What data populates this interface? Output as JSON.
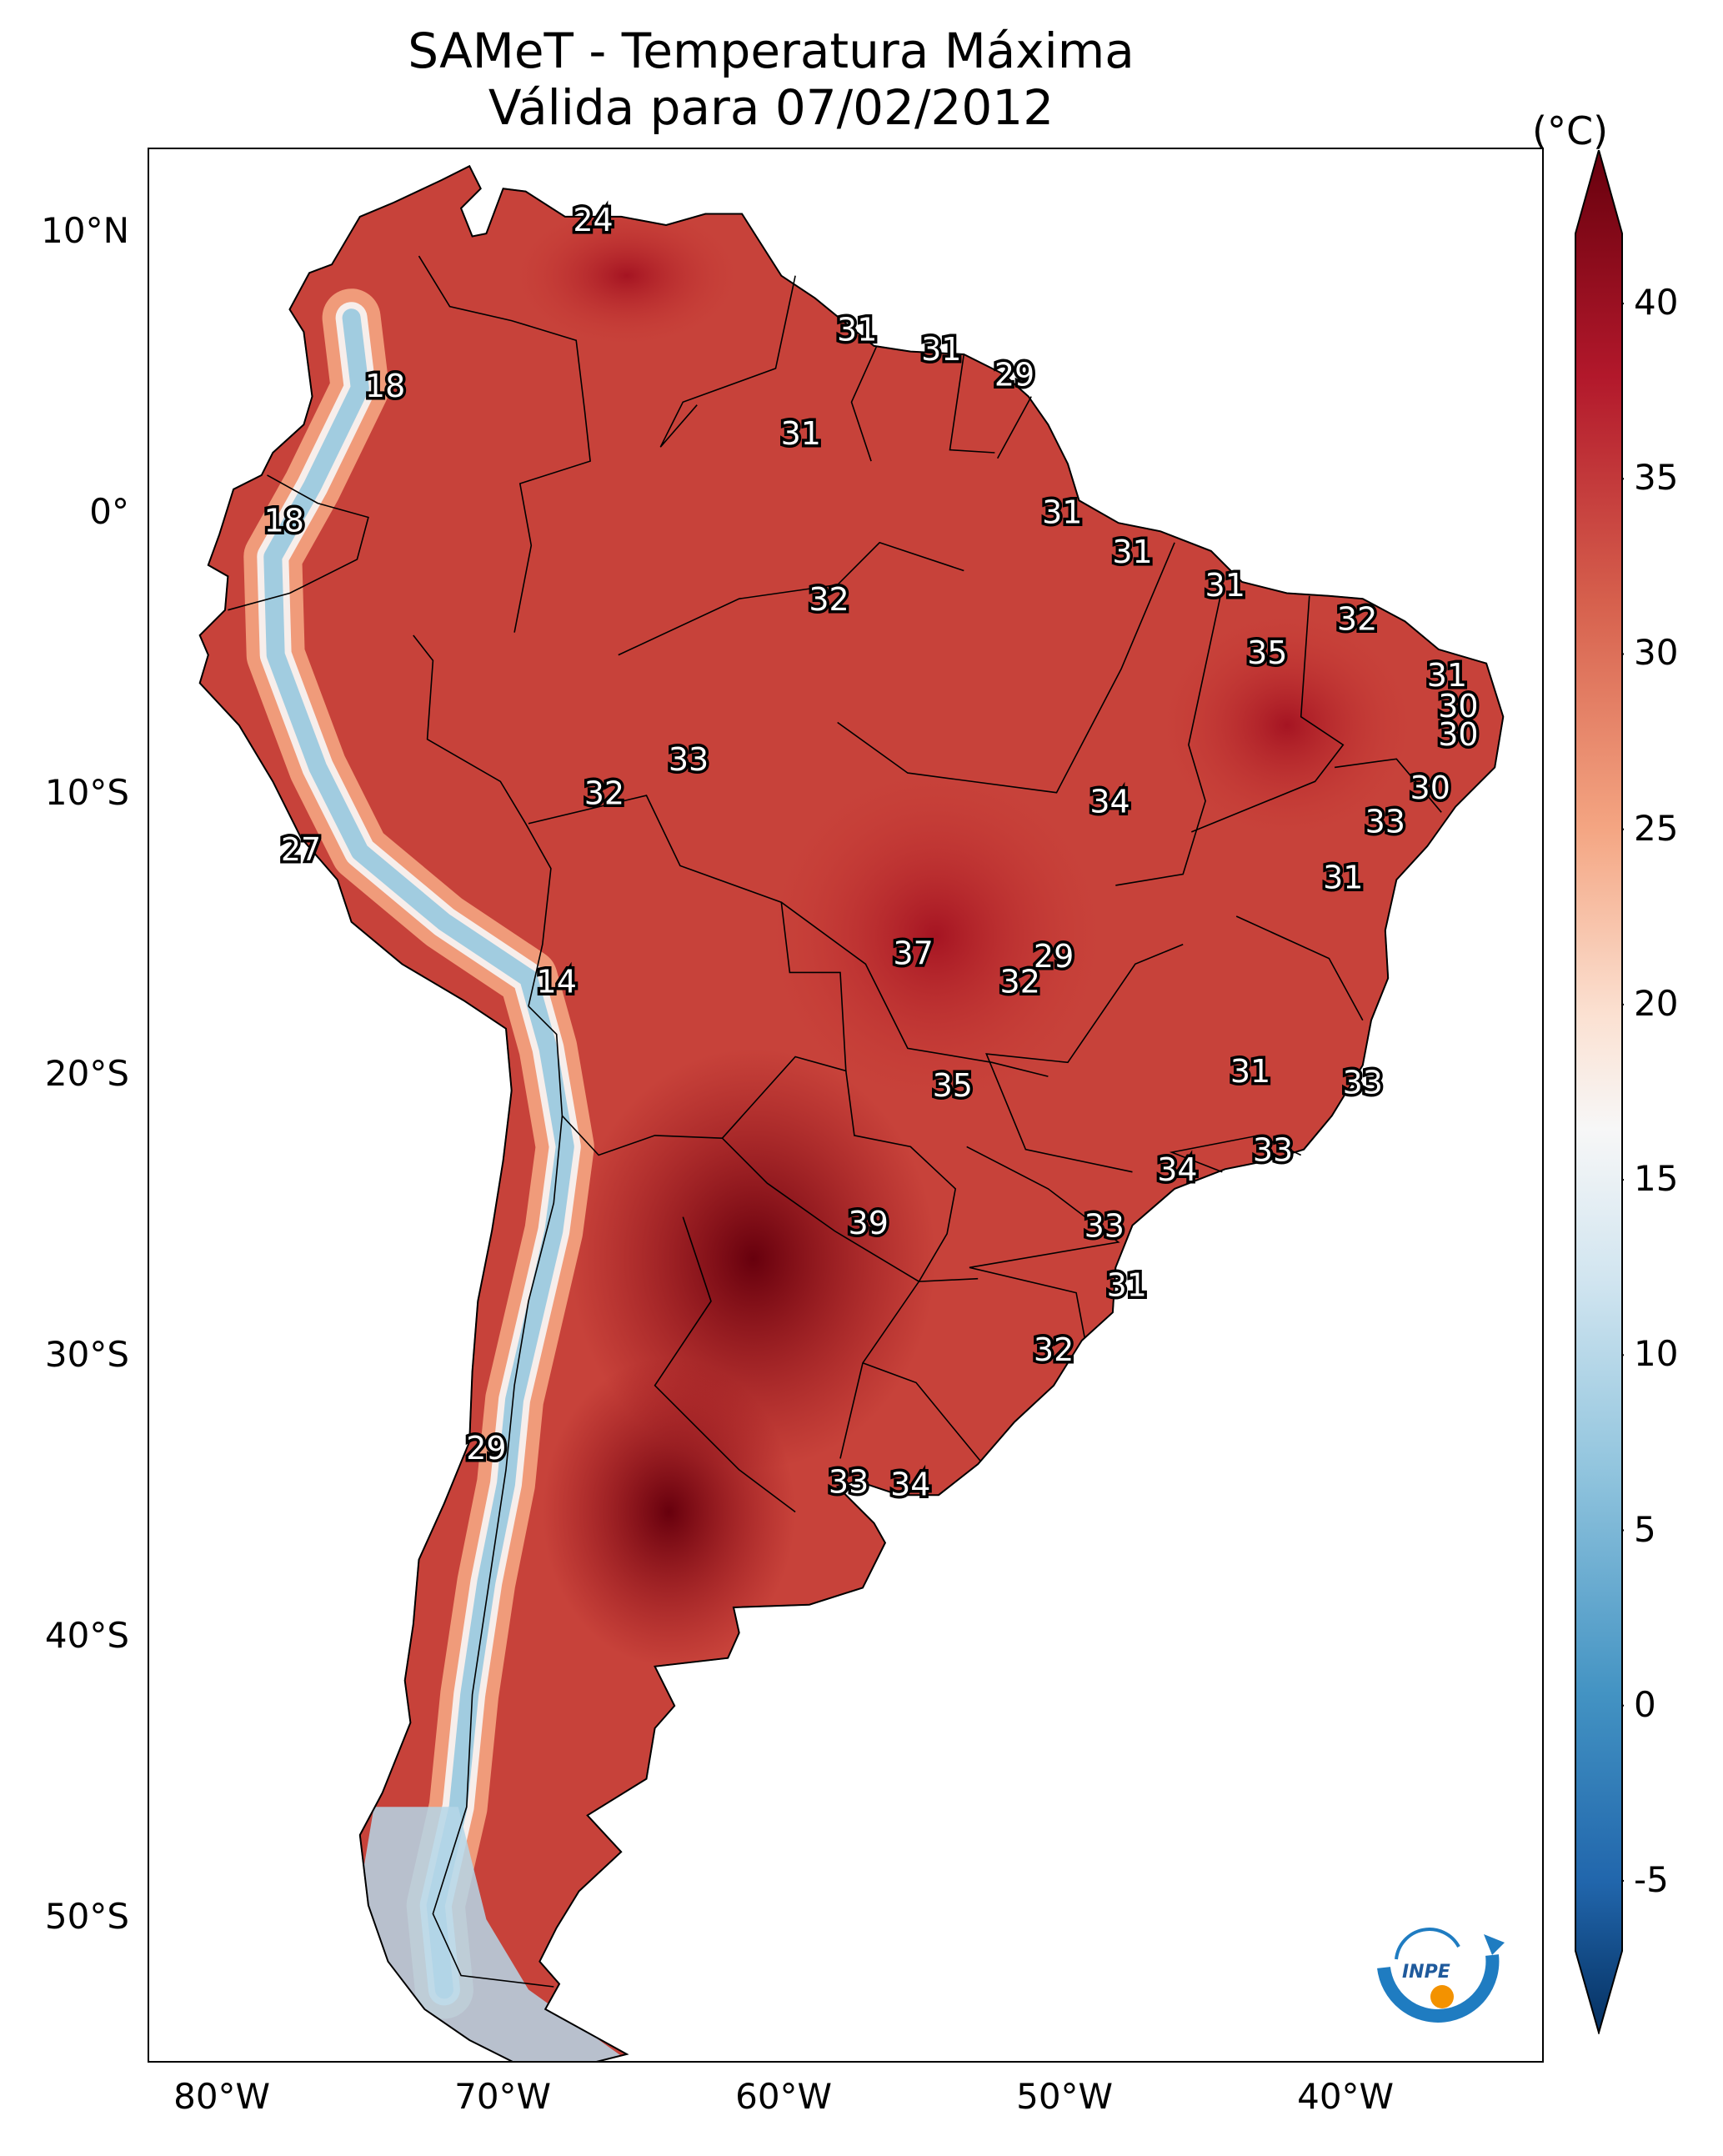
{
  "title": {
    "line1": "SAMeT - Temperatura Máxima",
    "line2": "Válida para 07/02/2012"
  },
  "lat_labels": [
    "10°N",
    "0°",
    "10°S",
    "20°S",
    "30°S",
    "40°S",
    "50°S"
  ],
  "lon_labels": [
    "80°W",
    "70°W",
    "60°W",
    "50°W",
    "40°W"
  ],
  "colorbar": {
    "unit": "(°C)",
    "ticks": [
      "40",
      "35",
      "30",
      "25",
      "20",
      "15",
      "10",
      "5",
      "0",
      "-5"
    ],
    "min": -7,
    "max": 42
  },
  "logo": {
    "text": "INPE"
  },
  "colors": {
    "hot": "#67000d",
    "warm": "#c83a35",
    "mild": "#f4a582",
    "neutral": "#f7f7f7",
    "cool": "#92c5de",
    "cold": "#053061"
  },
  "map_labels": [
    {
      "value": "24",
      "lon": -67.2,
      "lat": 10.4
    },
    {
      "value": "31",
      "lon": -57.8,
      "lat": 6.5
    },
    {
      "value": "31",
      "lon": -54.8,
      "lat": 5.8
    },
    {
      "value": "29",
      "lon": -52.2,
      "lat": 4.9
    },
    {
      "value": "18",
      "lon": -74.6,
      "lat": 4.5
    },
    {
      "value": "31",
      "lon": -59.8,
      "lat": 2.8
    },
    {
      "value": "31",
      "lon": -50.5,
      "lat": 0.0
    },
    {
      "value": "18",
      "lon": -78.2,
      "lat": -0.3
    },
    {
      "value": "31",
      "lon": -48.0,
      "lat": -1.4
    },
    {
      "value": "31",
      "lon": -44.7,
      "lat": -2.6
    },
    {
      "value": "32",
      "lon": -58.8,
      "lat": -3.1
    },
    {
      "value": "32",
      "lon": -40.0,
      "lat": -3.8
    },
    {
      "value": "35",
      "lon": -43.2,
      "lat": -5.0
    },
    {
      "value": "31",
      "lon": -36.8,
      "lat": -5.8
    },
    {
      "value": "30",
      "lon": -36.4,
      "lat": -6.9
    },
    {
      "value": "30",
      "lon": -36.4,
      "lat": -7.9
    },
    {
      "value": "33",
      "lon": -63.8,
      "lat": -8.8
    },
    {
      "value": "30",
      "lon": -37.4,
      "lat": -9.8
    },
    {
      "value": "32",
      "lon": -66.8,
      "lat": -10.0
    },
    {
      "value": "34",
      "lon": -48.8,
      "lat": -10.3
    },
    {
      "value": "33",
      "lon": -39.0,
      "lat": -11.0
    },
    {
      "value": "27",
      "lon": -77.6,
      "lat": -12.0
    },
    {
      "value": "31",
      "lon": -40.5,
      "lat": -13.0
    },
    {
      "value": "37",
      "lon": -55.8,
      "lat": -15.7
    },
    {
      "value": "29",
      "lon": -50.8,
      "lat": -15.8
    },
    {
      "value": "32",
      "lon": -52.0,
      "lat": -16.7
    },
    {
      "value": "14",
      "lon": -68.5,
      "lat": -16.7
    },
    {
      "value": "31",
      "lon": -43.8,
      "lat": -19.9
    },
    {
      "value": "33",
      "lon": -39.8,
      "lat": -20.3
    },
    {
      "value": "35",
      "lon": -54.4,
      "lat": -20.4
    },
    {
      "value": "33",
      "lon": -43.0,
      "lat": -22.7
    },
    {
      "value": "34",
      "lon": -46.4,
      "lat": -23.4
    },
    {
      "value": "39",
      "lon": -57.4,
      "lat": -25.3
    },
    {
      "value": "33",
      "lon": -49.0,
      "lat": -25.4
    },
    {
      "value": "31",
      "lon": -48.2,
      "lat": -27.5
    },
    {
      "value": "32",
      "lon": -50.8,
      "lat": -29.8
    },
    {
      "value": "29",
      "lon": -71.0,
      "lat": -33.3
    },
    {
      "value": "33",
      "lon": -58.1,
      "lat": -34.5
    },
    {
      "value": "34",
      "lon": -55.9,
      "lat": -34.6
    }
  ]
}
